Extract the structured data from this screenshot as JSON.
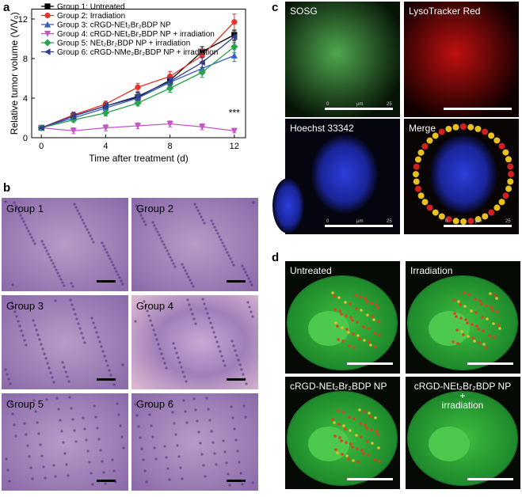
{
  "chart_data": {
    "type": "line",
    "panel": "a",
    "y_label": "Relative tumor volume (V/V₀)",
    "x_label": "Time after treatment (d)",
    "x": [
      0,
      2,
      4,
      6,
      8,
      10,
      12
    ],
    "xlim": [
      -0.6,
      12.7
    ],
    "ylim": [
      0,
      13
    ],
    "xticks": [
      0,
      4,
      8,
      12
    ],
    "yticks": [
      0,
      4,
      8,
      12
    ],
    "annotation": "***",
    "legend": "upper-left",
    "series": [
      {
        "name": "Group 1: Untreated",
        "color": "#000000",
        "marker": "square",
        "values": [
          1,
          2.2,
          3.2,
          4.1,
          5.8,
          8.7,
          10.4
        ],
        "errors": [
          0.1,
          0.3,
          0.3,
          0.4,
          0.5,
          0.5,
          0.5
        ]
      },
      {
        "name": "Group 2: Irradiation",
        "color": "#e8322d",
        "marker": "circle",
        "values": [
          1,
          2.3,
          3.4,
          5.1,
          6.2,
          8.3,
          11.7
        ],
        "errors": [
          0.1,
          0.3,
          0.3,
          0.4,
          0.5,
          0.6,
          0.8
        ]
      },
      {
        "name": "Group 3: cRGD-NEt₂Br₂BDP NP",
        "color": "#3a5fc4",
        "marker": "triangle-up",
        "values": [
          1,
          2.0,
          3.0,
          4.0,
          5.6,
          7.0,
          8.3
        ],
        "errors": [
          0.1,
          0.2,
          0.3,
          0.3,
          0.4,
          0.5,
          0.6
        ]
      },
      {
        "name": "Group 4: cRGD-NEt₂Br₂BDP NP + irradiation",
        "color": "#c455c8",
        "marker": "triangle-down",
        "values": [
          1,
          0.7,
          1.0,
          1.2,
          1.4,
          1.1,
          0.7
        ],
        "errors": [
          0.1,
          0.3,
          0.3,
          0.3,
          0.3,
          0.3,
          0.2
        ]
      },
      {
        "name": "Group 5: NEt₂Br₂BDP NP + irradiation",
        "color": "#2aa34a",
        "marker": "diamond",
        "values": [
          1,
          1.8,
          2.5,
          3.5,
          5.0,
          6.6,
          9.2
        ],
        "errors": [
          0.1,
          0.2,
          0.3,
          0.3,
          0.4,
          0.5,
          0.6
        ]
      },
      {
        "name": "Group 6: cRGD-NMe₂Br₂BDP NP + irradiation",
        "color": "#343c8c",
        "marker": "triangle-left",
        "values": [
          1,
          2.2,
          3.2,
          4.2,
          5.7,
          7.6,
          10.2
        ],
        "errors": [
          0.1,
          0.3,
          0.3,
          0.4,
          0.4,
          0.5,
          0.6
        ]
      }
    ]
  },
  "panel_b": {
    "label": "b",
    "images": [
      "Group 1",
      "Group 2",
      "Group 3",
      "Group 4",
      "Group 5",
      "Group 6"
    ]
  },
  "panel_c": {
    "label": "c",
    "images": [
      "SOSG",
      "LysoTracker Red",
      "Hoechst 33342",
      "Merge"
    ],
    "scale_labels": [
      "0",
      "µm",
      "25"
    ]
  },
  "panel_d": {
    "label": "d",
    "images": [
      "Untreated",
      "Irradiation",
      "cRGD-NEt₂Br₂BDP NP",
      "cRGD-NEt₂Br₂BDP NP\n+\nirradiation"
    ]
  }
}
